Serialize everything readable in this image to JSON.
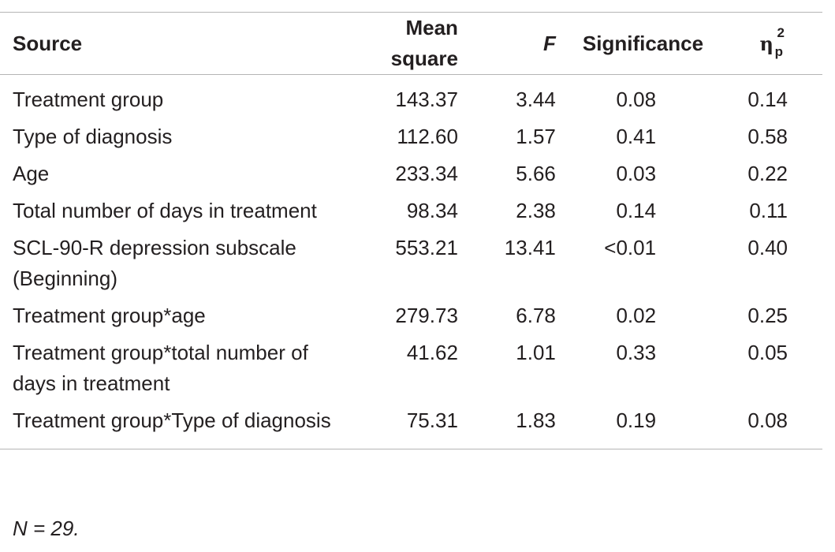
{
  "table": {
    "headers": {
      "source": "Source",
      "mean_square": "Mean square",
      "f": "F",
      "significance": "Significance",
      "eta_symbol": "η",
      "eta_sup": "2",
      "eta_sub": "p"
    },
    "rows": [
      {
        "source": "Treatment group",
        "mean_square": "143.37",
        "f": "3.44",
        "significance": "0.08",
        "eta": "0.14"
      },
      {
        "source": "Type of diagnosis",
        "mean_square": "112.60",
        "f": "1.57",
        "significance": "0.41",
        "eta": "0.58"
      },
      {
        "source": "Age",
        "mean_square": "233.34",
        "f": "5.66",
        "significance": "0.03",
        "eta": "0.22"
      },
      {
        "source": "Total number of days in treatment",
        "mean_square": "98.34",
        "f": "2.38",
        "significance": "0.14",
        "eta": "0.11"
      },
      {
        "source": "SCL-90-R depression subscale (Beginning)",
        "mean_square": "553.21",
        "f": "13.41",
        "significance": "<0.01",
        "eta": "0.40"
      },
      {
        "source": "Treatment group*age",
        "mean_square": "279.73",
        "f": "6.78",
        "significance": "0.02",
        "eta": "0.25"
      },
      {
        "source": "Treatment group*total number of days in treatment",
        "mean_square": "41.62",
        "f": "1.01",
        "significance": "0.33",
        "eta": "0.05"
      },
      {
        "source": "Treatment group*Type of diagnosis",
        "mean_square": "75.31",
        "f": "1.83",
        "significance": "0.19",
        "eta": "0.08"
      }
    ],
    "note": "N = 29."
  }
}
